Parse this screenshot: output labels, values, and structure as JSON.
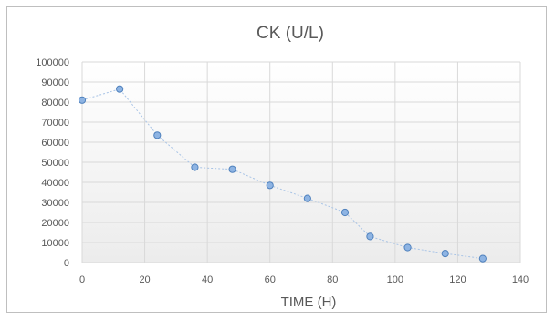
{
  "chart_data": {
    "type": "scatter",
    "title": "CK (U/L)",
    "xlabel": "TIME (H)",
    "ylabel": "",
    "xlim": [
      0,
      140
    ],
    "ylim": [
      0,
      100000
    ],
    "x_ticks": [
      0,
      20,
      40,
      60,
      80,
      100,
      120,
      140
    ],
    "y_ticks": [
      0,
      10000,
      20000,
      30000,
      40000,
      50000,
      60000,
      70000,
      80000,
      90000,
      100000
    ],
    "grid": true,
    "legend": "none",
    "line": "dotted",
    "series": [
      {
        "x": [
          0,
          12,
          24,
          36,
          48,
          60,
          72,
          84,
          92,
          104,
          116,
          128
        ],
        "y": [
          81000,
          86500,
          63500,
          47500,
          46500,
          38500,
          32000,
          25000,
          13000,
          7500,
          4500,
          2000
        ]
      }
    ],
    "colors": {
      "marker_fill": "#8eb4e3",
      "marker_stroke": "#4f81bd",
      "line": "#a9c4e6",
      "grid": "#d9d9d9",
      "plot_bg_bottom": "#ececec"
    }
  }
}
